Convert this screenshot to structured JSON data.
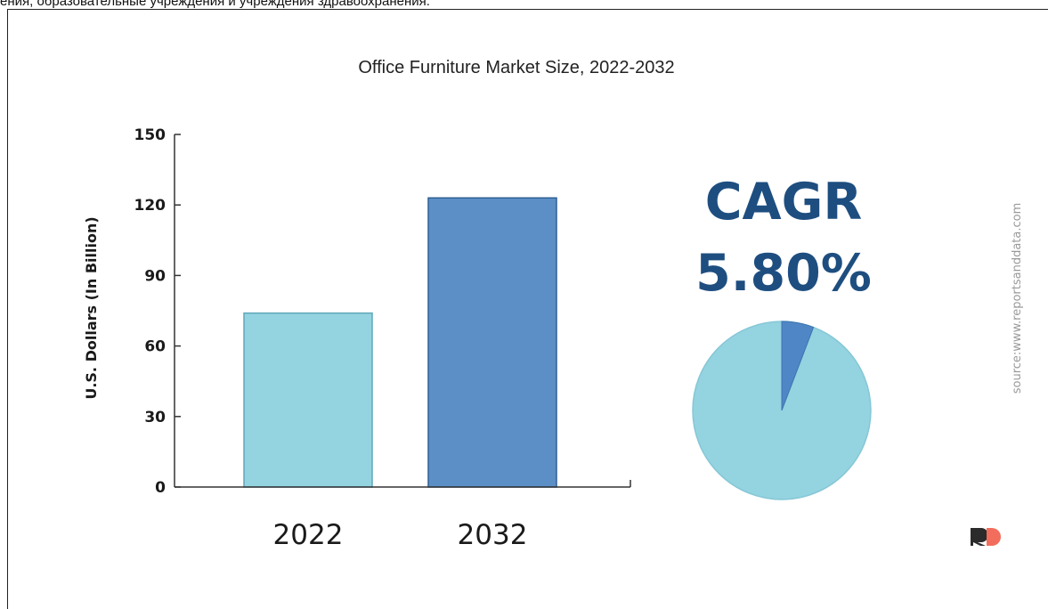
{
  "top_caption": "ения, образовательные учреждения и учреждения здравоохранения.",
  "chart_data": {
    "type": "bar",
    "title": "Office Furniture Market Size, 2022-2032",
    "ylabel": "U.S. Dollars (In Billion)",
    "xlabel": "",
    "ylim": [
      0,
      150
    ],
    "yticks": [
      0,
      30,
      60,
      90,
      120,
      150
    ],
    "categories": [
      "2022",
      "2032"
    ],
    "values": [
      74,
      123
    ],
    "bar_colors": [
      "#94d3e0",
      "#5b8fc6"
    ],
    "grid": false,
    "cagr": {
      "label": "CAGR",
      "value": "5.80%",
      "pie_share": 0.058,
      "pie_colors": {
        "main": "#94d3e0",
        "slice": "#4f86c6"
      }
    },
    "source": "source:www.reportsanddata.com",
    "logo": "RD"
  }
}
